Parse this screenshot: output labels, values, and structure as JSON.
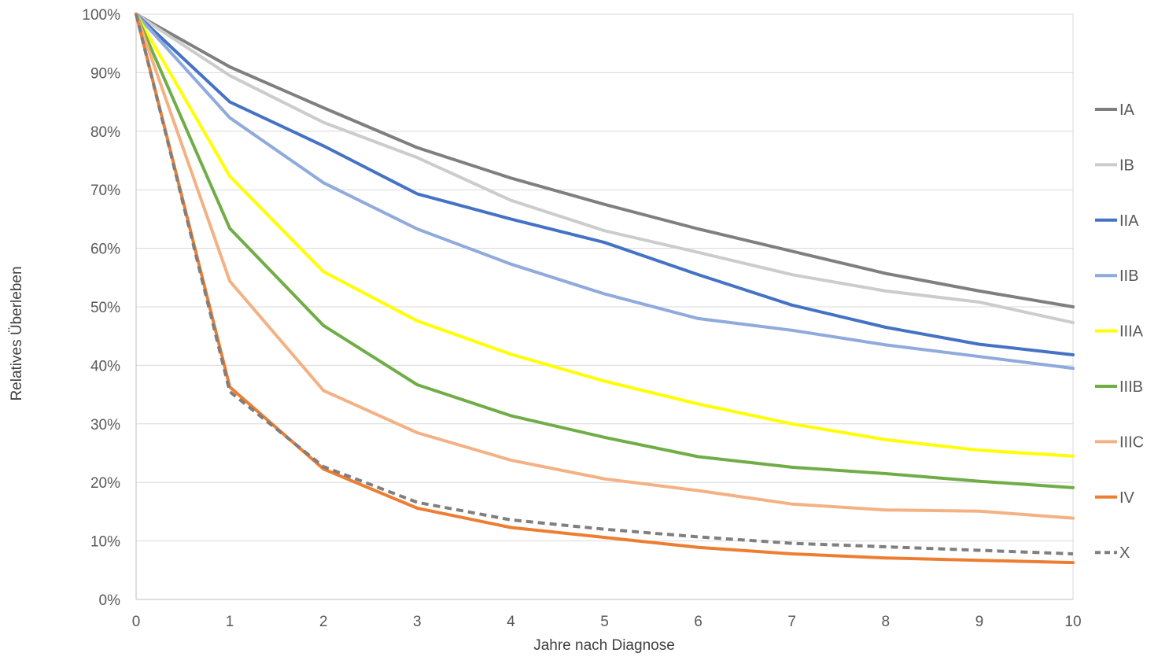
{
  "chart_data": {
    "type": "line",
    "title": "",
    "xlabel": "Jahre nach Diagnose",
    "ylabel": "Relatives Überleben",
    "x": [
      0,
      1,
      2,
      3,
      4,
      5,
      6,
      7,
      8,
      9,
      10
    ],
    "xlim": [
      0,
      10
    ],
    "ylim": [
      0,
      100
    ],
    "y_ticks": [
      "0%",
      "10%",
      "20%",
      "30%",
      "40%",
      "50%",
      "60%",
      "70%",
      "80%",
      "90%",
      "100%"
    ],
    "x_ticks": [
      "0",
      "1",
      "2",
      "3",
      "4",
      "5",
      "6",
      "7",
      "8",
      "9",
      "10"
    ],
    "grid": "horizontal",
    "legend_position": "right",
    "series": [
      {
        "name": "IA",
        "color": "#7f7f7f",
        "dashed": false,
        "values": [
          100,
          91.0,
          84.0,
          77.2,
          72.0,
          67.5,
          63.3,
          59.5,
          55.7,
          52.7,
          50.0
        ]
      },
      {
        "name": "IB",
        "color": "#cccccc",
        "dashed": false,
        "values": [
          100,
          89.5,
          81.5,
          75.5,
          68.2,
          63.0,
          59.3,
          55.5,
          52.7,
          50.8,
          47.3
        ]
      },
      {
        "name": "IIA",
        "color": "#4472c4",
        "dashed": false,
        "values": [
          100,
          85.0,
          77.5,
          69.3,
          65.0,
          61.0,
          55.5,
          50.3,
          46.5,
          43.6,
          41.8
        ]
      },
      {
        "name": "IIB",
        "color": "#8faadc",
        "dashed": false,
        "values": [
          100,
          82.3,
          71.2,
          63.3,
          57.3,
          52.2,
          48.0,
          46.0,
          43.5,
          41.5,
          39.5
        ]
      },
      {
        "name": "IIIA",
        "color": "#ffff00",
        "dashed": false,
        "values": [
          100,
          72.3,
          56.0,
          47.6,
          41.9,
          37.3,
          33.4,
          30.0,
          27.3,
          25.5,
          24.5
        ]
      },
      {
        "name": "IIIB",
        "color": "#70ad47",
        "dashed": false,
        "values": [
          100,
          63.4,
          46.8,
          36.7,
          31.4,
          27.7,
          24.4,
          22.6,
          21.5,
          20.2,
          19.1
        ]
      },
      {
        "name": "IIIC",
        "color": "#f4b183",
        "dashed": false,
        "values": [
          100,
          54.4,
          35.7,
          28.5,
          23.8,
          20.6,
          18.6,
          16.3,
          15.3,
          15.1,
          13.9
        ]
      },
      {
        "name": "IV",
        "color": "#ed7d31",
        "dashed": false,
        "values": [
          100,
          36.3,
          22.3,
          15.6,
          12.3,
          10.6,
          8.9,
          7.8,
          7.1,
          6.7,
          6.3
        ]
      },
      {
        "name": "X",
        "color": "#7f7f7f",
        "dashed": true,
        "values": [
          100,
          35.5,
          22.7,
          16.6,
          13.6,
          12.0,
          10.7,
          9.6,
          9.0,
          8.4,
          7.8
        ]
      }
    ]
  }
}
